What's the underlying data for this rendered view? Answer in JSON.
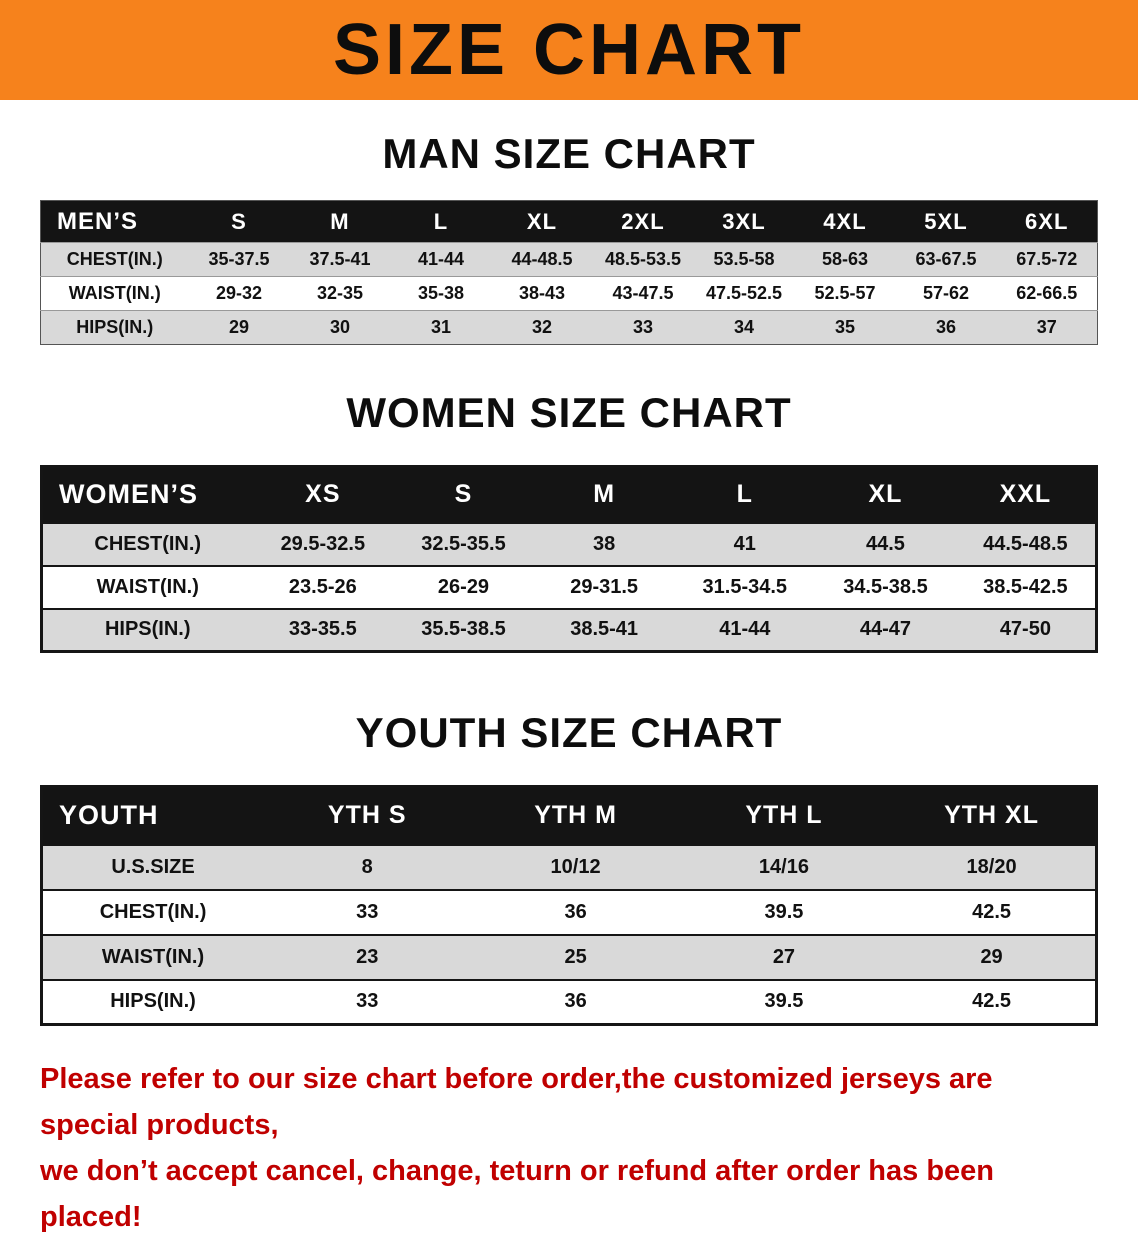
{
  "banner": {
    "title": "SIZE CHART",
    "bg_color": "#F6821C",
    "text_color": "#0D0D0D"
  },
  "sections": [
    {
      "id": "men",
      "heading": "MAN SIZE CHART",
      "table": {
        "header": [
          "MEN’S",
          "S",
          "M",
          "L",
          "XL",
          "2XL",
          "3XL",
          "4XL",
          "5XL",
          "6XL"
        ],
        "rows": [
          {
            "label": "CHEST(IN.)",
            "values": [
              "35-37.5",
              "37.5-41",
              "41-44",
              "44-48.5",
              "48.5-53.5",
              "53.5-58",
              "58-63",
              "63-67.5",
              "67.5-72"
            ]
          },
          {
            "label": "WAIST(IN.)",
            "values": [
              "29-32",
              "32-35",
              "35-38",
              "38-43",
              "43-47.5",
              "47.5-52.5",
              "52.5-57",
              "57-62",
              "62-66.5"
            ]
          },
          {
            "label": "HIPS(IN.)",
            "values": [
              "29",
              "30",
              "31",
              "32",
              "33",
              "34",
              "35",
              "36",
              "37"
            ]
          }
        ]
      }
    },
    {
      "id": "women",
      "heading": "WOMEN SIZE CHART",
      "table": {
        "header": [
          "WOMEN’S",
          "XS",
          "S",
          "M",
          "L",
          "XL",
          "XXL"
        ],
        "rows": [
          {
            "label": "CHEST(IN.)",
            "values": [
              "29.5-32.5",
              "32.5-35.5",
              "38",
              "41",
              "44.5",
              "44.5-48.5"
            ]
          },
          {
            "label": "WAIST(IN.)",
            "values": [
              "23.5-26",
              "26-29",
              "29-31.5",
              "31.5-34.5",
              "34.5-38.5",
              "38.5-42.5"
            ]
          },
          {
            "label": "HIPS(IN.)",
            "values": [
              "33-35.5",
              "35.5-38.5",
              "38.5-41",
              "41-44",
              "44-47",
              "47-50"
            ]
          }
        ]
      }
    },
    {
      "id": "youth",
      "heading": "YOUTH SIZE CHART",
      "table": {
        "header": [
          "YOUTH",
          "YTH S",
          "YTH M",
          "YTH L",
          "YTH XL"
        ],
        "rows": [
          {
            "label": "U.S.SIZE",
            "values": [
              "8",
              "10/12",
              "14/16",
              "18/20"
            ]
          },
          {
            "label": "CHEST(IN.)",
            "values": [
              "33",
              "36",
              "39.5",
              "42.5"
            ]
          },
          {
            "label": "WAIST(IN.)",
            "values": [
              "23",
              "25",
              "27",
              "29"
            ]
          },
          {
            "label": "HIPS(IN.)",
            "values": [
              "33",
              "36",
              "39.5",
              "42.5"
            ]
          }
        ]
      }
    }
  ],
  "disclaimer": {
    "color": "#C00000",
    "lines": [
      "Please refer to our size chart before order,the customized jerseys are special products,",
      "we don’t accept cancel, change, teturn or refund after order has been placed!"
    ]
  }
}
